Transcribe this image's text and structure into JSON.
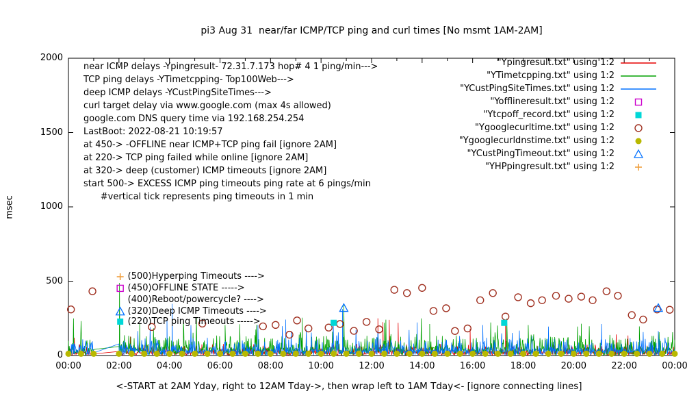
{
  "chart_data": {
    "type": "line+scatter",
    "title": "pi3 Aug 31  near/far ICMP/TCP ping and curl times [No msmt 1AM-2AM]",
    "ylabel": "msec",
    "xlabel": "<-START at 2AM Yday, right to 12AM Tday->, then wrap left to 1AM Tday<- [ignore connecting lines]",
    "ylim": [
      0,
      2000
    ],
    "xlim_hours": [
      0,
      24
    ],
    "grid": false,
    "legend_position": "top-right-inside",
    "y_ticks": [
      0,
      500,
      1000,
      1500,
      2000
    ],
    "x_ticks": [
      {
        "hour": 0,
        "label": "00:00"
      },
      {
        "hour": 2,
        "label": "02:00"
      },
      {
        "hour": 4,
        "label": "04:00"
      },
      {
        "hour": 6,
        "label": "06:00"
      },
      {
        "hour": 8,
        "label": "08:00"
      },
      {
        "hour": 10,
        "label": "10:00"
      },
      {
        "hour": 12,
        "label": "12:00"
      },
      {
        "hour": 14,
        "label": "14:00"
      },
      {
        "hour": 16,
        "label": "16:00"
      },
      {
        "hour": 18,
        "label": "18:00"
      },
      {
        "hour": 20,
        "label": "20:00"
      },
      {
        "hour": 22,
        "label": "22:00"
      },
      {
        "hour": 24,
        "label": "00:00"
      }
    ],
    "no_measurement_gap_hours": [
      1,
      2
    ],
    "annotations": [
      "near ICMP delays -Ypingresult- 72.31.7.173 hop# 4 1 ping/min--->",
      "TCP ping delays -YTimetcpping- Top100Web--->",
      "deep ICMP delays -YCustPingSiteTimes--->",
      "curl target delay via www.google.com (max 4s allowed)",
      "google.com DNS query time via 192.168.254.254",
      "LastBoot: 2022-08-21 10:19:57",
      "at 450-> -OFFLINE near ICMP+TCP ping fail [ignore 2AM]",
      "at 220-> TCP ping failed while online [ignore 2AM]",
      "at 320-> deep (customer) ICMP timeouts [ignore 2AM]",
      "start 500-> EXCESS ICMP ping timeouts ping rate at 6 pings/min",
      "      #vertical tick represents ping timeouts in 1 min"
    ],
    "legend": [
      {
        "label": "\"Ypingresult.txt\" using 1:2",
        "color": "#e60000",
        "marker": "line"
      },
      {
        "label": "\"YTimetcpping.txt\" using 1:2",
        "color": "#00a000",
        "marker": "line"
      },
      {
        "label": "\"YCustPingSiteTimes.txt\" using 1:2",
        "color": "#0070ff",
        "marker": "line"
      },
      {
        "label": "\"Yofflineresult.txt\" using 1:2",
        "color": "#cc00cc",
        "marker": "open-square"
      },
      {
        "label": "\"Ytcpoff_record.txt\" using 1:2",
        "color": "#00d7d7",
        "marker": "filled-square"
      },
      {
        "label": "\"Ygooglecurltime.txt\" using 1:2",
        "color": "#a03020",
        "marker": "open-circle"
      },
      {
        "label": "\"Ygooglecurldnstime.txt\" using 1:2",
        "color": "#b8b800",
        "marker": "filled-circle"
      },
      {
        "label": "\"YCustPingTimeout.txt\" using 1:2",
        "color": "#0070ff",
        "marker": "open-triangle"
      },
      {
        "label": "\"YHPpingresult.txt\" using 1:2",
        "color": "#f0a040",
        "marker": "plus"
      }
    ],
    "noise_series": [
      {
        "name": "Ypingresult",
        "color": "#e60000",
        "baseline": 26,
        "jitter": 55,
        "spike_rate": 0.004,
        "spike_max": 190,
        "seed": 41,
        "spikes": [
          [
            12.25,
            250
          ],
          [
            12.45,
            225
          ],
          [
            12.7,
            240
          ],
          [
            13.05,
            220
          ],
          [
            15.9,
            180
          ],
          [
            17.3,
            235
          ]
        ]
      },
      {
        "name": "YTimetcpping",
        "color": "#00a000",
        "baseline": 55,
        "jitter": 105,
        "spike_rate": 0.012,
        "spike_max": 260,
        "seed": 77,
        "spikes": [
          [
            2.02,
            488
          ],
          [
            2.82,
            215
          ],
          [
            4.55,
            230
          ],
          [
            6.2,
            205
          ],
          [
            9.25,
            255
          ],
          [
            10.9,
            338
          ],
          [
            12.5,
            220
          ],
          [
            14.3,
            212
          ],
          [
            17.35,
            248
          ],
          [
            18.2,
            205
          ],
          [
            20.3,
            214
          ],
          [
            22.6,
            196
          ]
        ]
      },
      {
        "name": "YCustPingSiteTimes",
        "color": "#0070ff",
        "baseline": 42,
        "jitter": 80,
        "spike_rate": 0.009,
        "spike_max": 230,
        "seed": 13,
        "spikes": [
          [
            3.9,
            235
          ],
          [
            4.1,
            348
          ],
          [
            7.5,
            205
          ],
          [
            8.6,
            242
          ],
          [
            10.85,
            312
          ],
          [
            13.8,
            222
          ],
          [
            16.4,
            205
          ],
          [
            19.0,
            195
          ],
          [
            21.1,
            212
          ],
          [
            23.35,
            165
          ]
        ]
      }
    ],
    "scatter_series": [
      {
        "name": "Ygooglecurltime",
        "marker": "open-circle",
        "color": "#a03020",
        "points": [
          [
            0.1,
            310
          ],
          [
            0.95,
            432
          ],
          [
            3.3,
            192
          ],
          [
            5.3,
            215
          ],
          [
            7.7,
            196
          ],
          [
            8.2,
            206
          ],
          [
            8.75,
            140
          ],
          [
            9.05,
            236
          ],
          [
            9.5,
            182
          ],
          [
            10.3,
            188
          ],
          [
            10.75,
            212
          ],
          [
            11.3,
            166
          ],
          [
            11.8,
            226
          ],
          [
            12.3,
            176
          ],
          [
            12.9,
            442
          ],
          [
            13.4,
            420
          ],
          [
            14.0,
            455
          ],
          [
            14.45,
            300
          ],
          [
            14.95,
            318
          ],
          [
            15.3,
            165
          ],
          [
            15.8,
            182
          ],
          [
            16.3,
            372
          ],
          [
            16.8,
            420
          ],
          [
            17.3,
            262
          ],
          [
            17.8,
            392
          ],
          [
            18.3,
            352
          ],
          [
            18.75,
            372
          ],
          [
            19.3,
            402
          ],
          [
            19.8,
            382
          ],
          [
            20.3,
            396
          ],
          [
            20.75,
            372
          ],
          [
            21.3,
            432
          ],
          [
            21.75,
            402
          ],
          [
            22.3,
            272
          ],
          [
            22.75,
            242
          ],
          [
            23.3,
            310
          ],
          [
            23.8,
            308
          ]
        ]
      },
      {
        "name": "Ygooglecurldnstime",
        "marker": "filled-circle",
        "color": "#b8b800",
        "every_hours": 0.5,
        "y": 12
      },
      {
        "name": "Ytcpoff_record",
        "marker": "filled-square",
        "color": "#00d7d7",
        "points": [
          [
            10.5,
            220
          ],
          [
            17.25,
            220
          ]
        ]
      },
      {
        "name": "YCustPingTimeout",
        "marker": "open-triangle",
        "color": "#0070ff",
        "points": [
          [
            10.9,
            320
          ],
          [
            23.35,
            320
          ]
        ]
      },
      {
        "name": "Yofflineresult",
        "marker": "open-square",
        "color": "#cc00cc",
        "points": []
      },
      {
        "name": "YHPpingresult",
        "marker": "plus",
        "color": "#f0a040",
        "points": []
      }
    ],
    "marker_annotations": [
      {
        "marker": "plus",
        "color": "#f0a040",
        "x": 2.05,
        "y": 530,
        "label": "(500)Hyperping Timeouts ---->"
      },
      {
        "marker": "open-square",
        "color": "#cc00cc",
        "x": 2.05,
        "y": 452,
        "label": "(450)OFFLINE STATE ----->"
      },
      {
        "marker": "none",
        "color": "#000000",
        "x": 2.05,
        "y": 374,
        "label": "(400)Reboot/powercycle? ---->"
      },
      {
        "marker": "open-triangle",
        "color": "#0070ff",
        "x": 2.05,
        "y": 296,
        "label": "(320)Deep ICMP Timeouts ---->"
      },
      {
        "marker": "filled-square",
        "color": "#00d7d7",
        "x": 2.05,
        "y": 228,
        "label": "(220)TCP ping Timeouts ----->"
      }
    ]
  }
}
